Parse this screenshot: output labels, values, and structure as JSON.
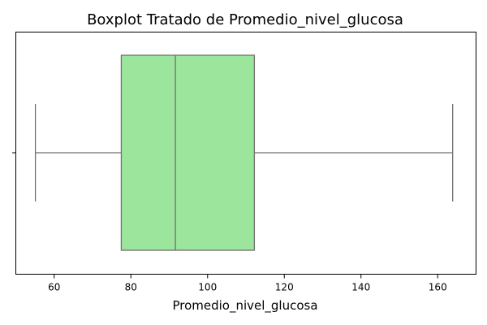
{
  "chart_data": {
    "type": "boxplot",
    "title": "Boxplot Tratado de Promedio_nivel_glucosa",
    "xlabel": "Promedio_nivel_glucosa",
    "ylabel": "",
    "orientation": "horizontal",
    "xlim": [
      50,
      170
    ],
    "xticks": [
      60,
      80,
      100,
      120,
      140,
      160
    ],
    "xtick_labels": [
      "60",
      "80",
      "100",
      "120",
      "140",
      "160"
    ],
    "grid": false,
    "legend": "none",
    "box": {
      "whisker_low": 55.1,
      "q1": 77.5,
      "median": 91.6,
      "q3": 112.2,
      "whisker_high": 163.9
    },
    "colors": {
      "box_fill": "#9ce59c",
      "line": "#707070"
    }
  }
}
